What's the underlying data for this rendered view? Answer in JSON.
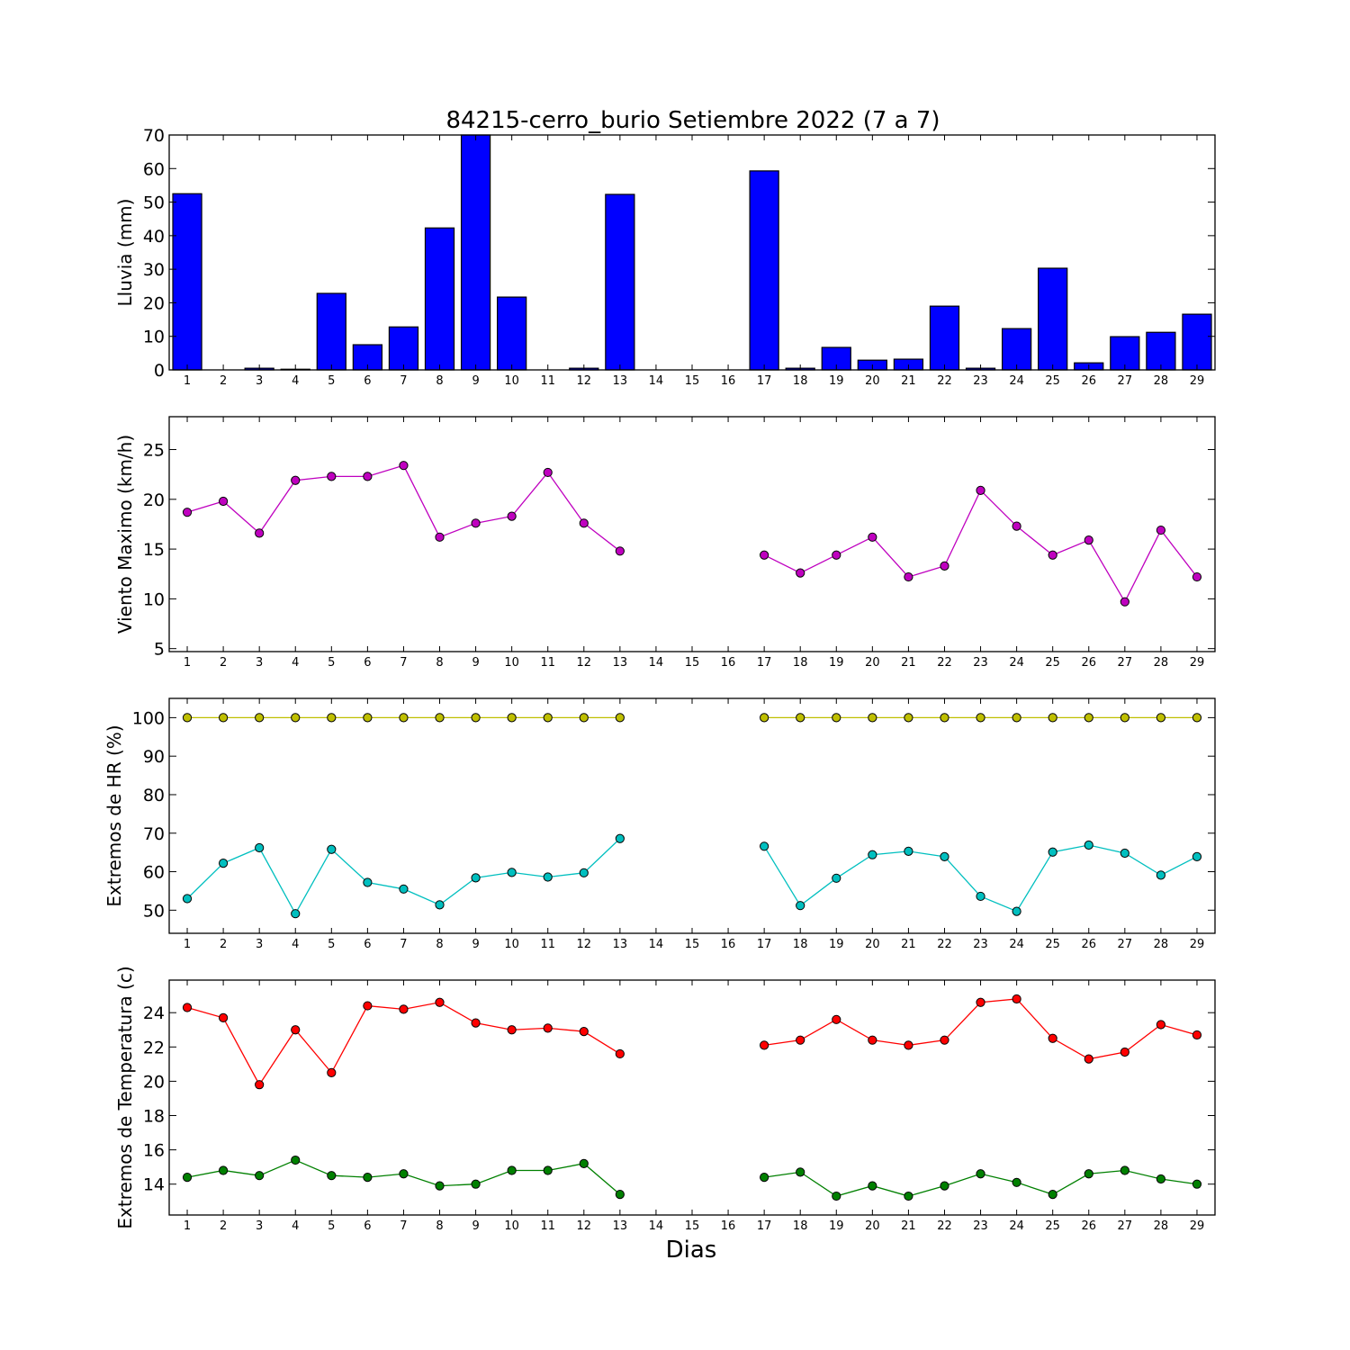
{
  "title": "84215-cerro_burio Setiembre 2022  (7 a 7)",
  "xlabel": "Dias",
  "chart_data": [
    {
      "type": "bar",
      "ylabel": "Lluvia (mm)",
      "ylim": [
        0,
        70
      ],
      "yticks": [
        0,
        10,
        20,
        30,
        40,
        50,
        60,
        70
      ],
      "categories": [
        1,
        2,
        3,
        4,
        5,
        6,
        7,
        8,
        9,
        10,
        11,
        12,
        13,
        14,
        15,
        16,
        17,
        18,
        19,
        20,
        21,
        22,
        23,
        24,
        25,
        26,
        27,
        28,
        29
      ],
      "series": [
        {
          "color": "#0000ff",
          "values": [
            52.5,
            0,
            0.5,
            0.2,
            22.8,
            7.5,
            12.8,
            42.3,
            70.0,
            21.7,
            0,
            0.5,
            52.3,
            0,
            0,
            0,
            59.3,
            0.5,
            6.7,
            2.9,
            3.2,
            19.0,
            0.5,
            12.3,
            30.3,
            2.1,
            9.9,
            11.2,
            16.6
          ]
        }
      ]
    },
    {
      "type": "line",
      "ylabel": "Viento Maximo (km/h)",
      "ylim": [
        4.7,
        28.3
      ],
      "yticks": [
        5,
        10,
        15,
        20,
        25
      ],
      "x": [
        1,
        2,
        3,
        4,
        5,
        6,
        7,
        8,
        9,
        10,
        11,
        12,
        13,
        14,
        15,
        16,
        17,
        18,
        19,
        20,
        21,
        22,
        23,
        24,
        25,
        26,
        27,
        28,
        29
      ],
      "series": [
        {
          "color": "#bf00bf",
          "values": [
            18.7,
            19.8,
            16.6,
            21.9,
            22.3,
            22.3,
            23.4,
            16.2,
            17.6,
            18.3,
            22.7,
            17.6,
            14.8,
            null,
            null,
            null,
            14.4,
            12.6,
            14.4,
            16.2,
            12.2,
            13.3,
            20.9,
            17.3,
            14.4,
            15.9,
            9.7,
            16.9,
            12.2
          ]
        }
      ]
    },
    {
      "type": "line",
      "ylabel": "Extremos de HR (%)",
      "ylim": [
        44,
        105
      ],
      "yticks": [
        50,
        60,
        70,
        80,
        90,
        100
      ],
      "x": [
        1,
        2,
        3,
        4,
        5,
        6,
        7,
        8,
        9,
        10,
        11,
        12,
        13,
        14,
        15,
        16,
        17,
        18,
        19,
        20,
        21,
        22,
        23,
        24,
        25,
        26,
        27,
        28,
        29
      ],
      "series": [
        {
          "color": "#bfbf00",
          "values": [
            100,
            100,
            100,
            100,
            100,
            100,
            100,
            100,
            100,
            100,
            100,
            100,
            100,
            null,
            null,
            null,
            100,
            100,
            100,
            100,
            100,
            100,
            100,
            100,
            100,
            100,
            100,
            100,
            100
          ]
        },
        {
          "color": "#00bfbf",
          "values": [
            53.0,
            62.2,
            66.2,
            49.1,
            65.8,
            57.2,
            55.5,
            51.4,
            58.4,
            59.8,
            58.6,
            59.7,
            68.6,
            null,
            null,
            null,
            66.6,
            51.2,
            58.3,
            64.4,
            65.3,
            63.9,
            53.6,
            49.7,
            65.1,
            66.9,
            64.8,
            59.1,
            63.9
          ]
        }
      ]
    },
    {
      "type": "line",
      "ylabel": "Extremos de Temperatura (c)",
      "ylim": [
        12.2,
        25.9
      ],
      "yticks": [
        14,
        16,
        18,
        20,
        22,
        24
      ],
      "x": [
        1,
        2,
        3,
        4,
        5,
        6,
        7,
        8,
        9,
        10,
        11,
        12,
        13,
        14,
        15,
        16,
        17,
        18,
        19,
        20,
        21,
        22,
        23,
        24,
        25,
        26,
        27,
        28,
        29
      ],
      "series": [
        {
          "color": "#ff0000",
          "values": [
            24.3,
            23.7,
            19.8,
            23.0,
            20.5,
            24.4,
            24.2,
            24.6,
            23.4,
            23.0,
            23.1,
            22.9,
            21.6,
            null,
            null,
            null,
            22.1,
            22.4,
            23.6,
            22.4,
            22.1,
            22.4,
            24.6,
            24.8,
            22.5,
            21.3,
            21.7,
            23.3,
            22.7
          ]
        },
        {
          "color": "#008000",
          "values": [
            14.4,
            14.8,
            14.5,
            15.4,
            14.5,
            14.4,
            14.6,
            13.9,
            14.0,
            14.8,
            14.8,
            15.2,
            13.4,
            null,
            null,
            null,
            14.4,
            14.7,
            13.3,
            13.9,
            13.3,
            13.9,
            14.6,
            14.1,
            13.4,
            14.6,
            14.8,
            14.3,
            14.0
          ]
        }
      ]
    }
  ]
}
